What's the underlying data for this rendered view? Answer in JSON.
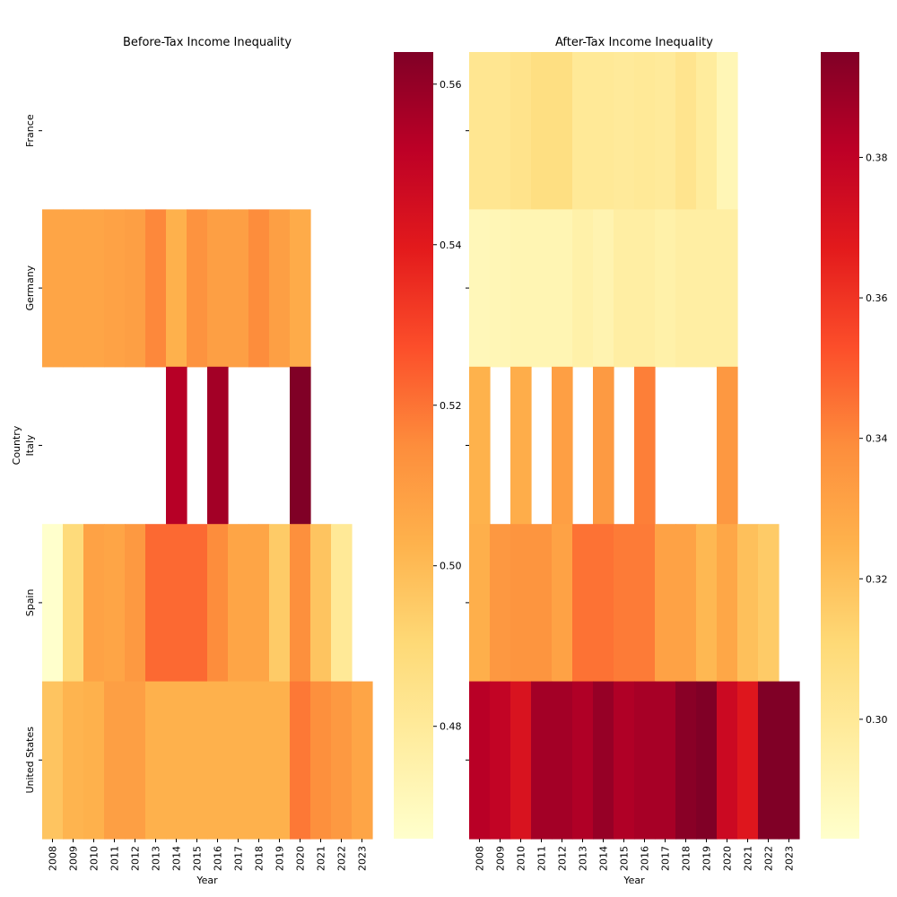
{
  "chart_data": [
    {
      "type": "heatmap",
      "title": "Before-Tax Income Inequality",
      "xlabel": "Year",
      "ylabel": "Country",
      "x": [
        "2008",
        "2009",
        "2010",
        "2011",
        "2012",
        "2013",
        "2014",
        "2015",
        "2016",
        "2017",
        "2018",
        "2019",
        "2020",
        "2021",
        "2022",
        "2023"
      ],
      "y": [
        "France",
        "Germany",
        "Italy",
        "Spain",
        "United States"
      ],
      "values": [
        [
          null,
          null,
          null,
          null,
          null,
          null,
          null,
          null,
          null,
          null,
          null,
          null,
          null,
          null,
          null,
          null
        ],
        [
          0.507,
          0.507,
          0.507,
          0.508,
          0.509,
          0.516,
          0.503,
          0.513,
          0.509,
          0.509,
          0.515,
          0.509,
          0.505,
          null,
          null,
          null
        ],
        [
          null,
          null,
          null,
          null,
          null,
          null,
          0.553,
          null,
          0.557,
          null,
          null,
          null,
          0.564,
          null,
          null,
          null
        ],
        [
          0.466,
          0.489,
          0.508,
          0.507,
          0.511,
          0.522,
          0.522,
          0.522,
          0.515,
          0.507,
          0.507,
          0.495,
          0.514,
          0.497,
          0.481,
          null
        ],
        [
          0.497,
          0.502,
          0.503,
          0.509,
          0.509,
          0.503,
          0.503,
          0.503,
          0.503,
          0.503,
          0.503,
          0.503,
          0.519,
          0.514,
          0.511,
          0.507
        ]
      ],
      "colorbar": {
        "min": 0.466,
        "max": 0.564,
        "ticks": [
          0.48,
          0.5,
          0.52,
          0.54,
          0.56
        ]
      },
      "colormap": "YlOrRd"
    },
    {
      "type": "heatmap",
      "title": "After-Tax Income Inequality",
      "xlabel": "Year",
      "ylabel": "",
      "x": [
        "2008",
        "2009",
        "2010",
        "2011",
        "2012",
        "2013",
        "2014",
        "2015",
        "2016",
        "2017",
        "2018",
        "2019",
        "2020",
        "2021",
        "2022",
        "2023"
      ],
      "y": [
        "",
        "",
        "",
        "",
        ""
      ],
      "values": [
        [
          0.302,
          0.302,
          0.304,
          0.307,
          0.307,
          0.3,
          0.3,
          0.299,
          0.3,
          0.299,
          0.303,
          0.298,
          0.29,
          null,
          null,
          null
        ],
        [
          0.289,
          0.29,
          0.291,
          0.291,
          0.291,
          0.294,
          0.292,
          0.296,
          0.296,
          0.294,
          0.296,
          0.296,
          0.296,
          null,
          null,
          null
        ],
        [
          0.325,
          null,
          0.327,
          null,
          0.332,
          null,
          0.334,
          null,
          0.342,
          null,
          null,
          null,
          0.335,
          null,
          null,
          null
        ],
        [
          0.326,
          0.335,
          0.336,
          0.336,
          0.331,
          0.345,
          0.345,
          0.343,
          0.343,
          0.331,
          0.331,
          0.323,
          0.329,
          0.32,
          0.316,
          null
        ],
        [
          0.382,
          0.379,
          0.371,
          0.387,
          0.387,
          0.384,
          0.39,
          0.384,
          0.386,
          0.386,
          0.393,
          0.395,
          0.376,
          0.369,
          0.395,
          0.395
        ]
      ],
      "colorbar": {
        "min": 0.283,
        "max": 0.395,
        "ticks": [
          0.3,
          0.32,
          0.34,
          0.36,
          0.38
        ]
      },
      "colormap": "YlOrRd"
    }
  ]
}
